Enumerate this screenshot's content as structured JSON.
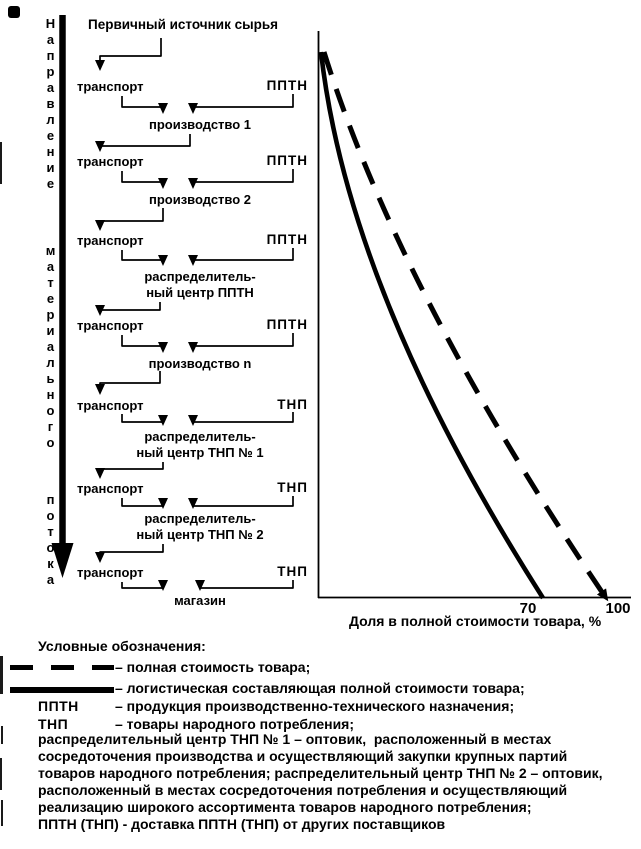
{
  "colors": {
    "ink": "#000000",
    "paper": "#ffffff"
  },
  "flow": {
    "title": "Первичный источник сырья",
    "direction_words": [
      "Направление",
      "материального",
      "потока"
    ],
    "transport_label": "транспорт",
    "rows": [
      {
        "right": "ППТН",
        "node": "производство 1"
      },
      {
        "right": "ППТН",
        "node": "производство 2"
      },
      {
        "right": "ППТН",
        "node": "распределитель-\nный центр ППТН"
      },
      {
        "right": "ППТН",
        "node": "производство n"
      },
      {
        "right": "ТНП",
        "node": "распределитель-\nный центр ТНП № 1"
      },
      {
        "right": "ТНП",
        "node": "распределитель-\nный центр ТНП № 2"
      },
      {
        "right": "ТНП",
        "node": "магазин"
      }
    ]
  },
  "chart_data": {
    "type": "line",
    "title": "",
    "xlabel": "Доля в полной стоимости товара, %",
    "ylabel": "",
    "x_range": [
      0,
      100
    ],
    "x_ticks": [
      70,
      100
    ],
    "grid": false,
    "legend_position": "below-figure",
    "point_format": "[share_percent, relative_distance_down_flow_axis]",
    "series": [
      {
        "name": "полная стоимость товара",
        "style": "dashed",
        "arrow_end": true,
        "points": [
          [
            2,
            0
          ],
          [
            38,
            0.47
          ],
          [
            96,
            1
          ]
        ]
      },
      {
        "name": "логистическая составляющая полной стоимости товара",
        "style": "solid",
        "arrow_end": false,
        "points": [
          [
            1,
            0
          ],
          [
            24,
            0.47
          ],
          [
            75,
            1
          ]
        ]
      }
    ]
  },
  "legend": {
    "heading": "Условные обозначения:",
    "items": [
      {
        "sample": "dashed-line",
        "label": "– полная стоимость товара;"
      },
      {
        "sample": "solid-line",
        "label": "– логистическая составляющая полной стоимости товара;"
      },
      {
        "term": "ППТН",
        "label": "– продукция производственно-технического назначения;"
      },
      {
        "term": "ТНП",
        "label": "– товары народного потребления;"
      }
    ],
    "notes": "распределительный центр ТНП № 1 – оптовик,  расположенный в местах\nсосредоточения производства и осуществляющий закупки крупных партий\nтоваров народного потребления; распределительный центр ТНП № 2 – оптовик,\nрасположенный в местах сосредоточения потребления и осуществляющий\nреализацию широкого ассортимента товаров народного потребления;\nППТН (ТНП) - доставка ППТН (ТНП) от других поставщиков"
  }
}
